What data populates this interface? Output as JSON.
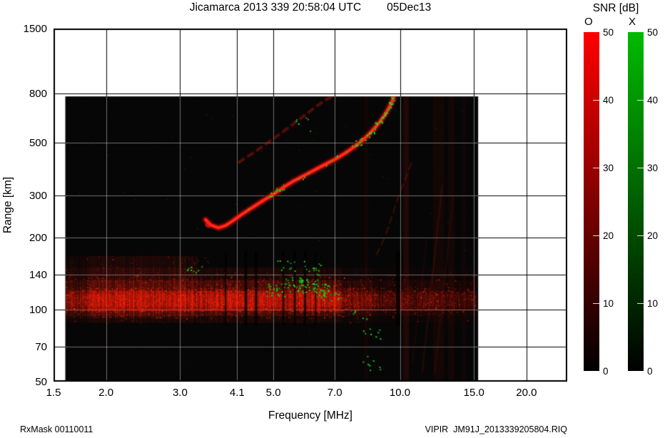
{
  "header": {
    "title": "Jicamarca 2013 339 20:58:04 UTC",
    "date": "05Dec13"
  },
  "footer": {
    "left": "RxMask 00110011",
    "right": "VIPIR  JM91J_2013339205804.RIQ"
  },
  "colorbar": {
    "label": "SNR [dB]",
    "o_label": "O",
    "x_label": "X",
    "min_db": 0,
    "max_db": 50,
    "ticks": [
      "50",
      "40",
      "30",
      "20",
      "10",
      "0"
    ],
    "o_top_color": "#ff0000",
    "x_top_color": "#00bb00",
    "bottom_color": "#000000"
  },
  "chart_data": {
    "type": "heatmap",
    "title": "Jicamarca 2013 339 20:58:04 UTC",
    "date": "05Dec13",
    "xlabel": "Frequency [MHz]",
    "ylabel": "Range [km]",
    "x_scale": "log",
    "y_scale": "log",
    "x_range": [
      1.5,
      25.0
    ],
    "y_range": [
      50,
      1500
    ],
    "x_ticks": [
      1.5,
      2.0,
      3.0,
      4.1,
      5.0,
      7.0,
      10.0,
      15.0,
      20.0
    ],
    "x_tick_labels": [
      "1.5",
      "2.0",
      "3.0",
      "4.1",
      "5.0",
      "7.0",
      "10.0",
      "15.0",
      "20.0"
    ],
    "y_ticks": [
      1500,
      800,
      500,
      300,
      200,
      140,
      100,
      70,
      50
    ],
    "y_tick_labels": [
      "1500",
      "800",
      "500",
      "300",
      "200",
      "140",
      "100",
      "70",
      "50"
    ],
    "snr_db_range": [
      0,
      50
    ],
    "data_region": {
      "f_min": 1.6,
      "f_max": 15.35,
      "r_min": 50,
      "r_max": 780
    },
    "o_trace": [
      [
        3.45,
        238
      ],
      [
        3.55,
        226
      ],
      [
        3.7,
        220
      ],
      [
        3.85,
        225
      ],
      [
        4.0,
        235
      ],
      [
        4.2,
        250
      ],
      [
        4.45,
        267
      ],
      [
        4.7,
        284
      ],
      [
        5.0,
        304
      ],
      [
        5.3,
        326
      ],
      [
        5.6,
        346
      ],
      [
        5.9,
        363
      ],
      [
        6.2,
        380
      ],
      [
        6.6,
        403
      ],
      [
        7.0,
        425
      ],
      [
        7.4,
        451
      ],
      [
        7.8,
        481
      ],
      [
        8.1,
        507
      ],
      [
        8.4,
        537
      ],
      [
        8.7,
        574
      ],
      [
        9.0,
        617
      ],
      [
        9.25,
        662
      ],
      [
        9.45,
        707
      ],
      [
        9.6,
        750
      ],
      [
        9.68,
        780
      ]
    ],
    "second_hop_trace": [
      [
        4.15,
        415
      ],
      [
        4.5,
        455
      ],
      [
        4.85,
        500
      ],
      [
        5.2,
        545
      ],
      [
        5.55,
        595
      ],
      [
        5.9,
        645
      ],
      [
        6.3,
        705
      ],
      [
        6.7,
        760
      ],
      [
        6.95,
        780
      ]
    ],
    "oblique_trace": [
      [
        8.8,
        170
      ],
      [
        9.2,
        200
      ],
      [
        9.6,
        250
      ],
      [
        10.0,
        310
      ],
      [
        10.35,
        360
      ],
      [
        10.65,
        410
      ]
    ],
    "e_region_band": {
      "f_min": 1.6,
      "f_max": 15.2,
      "r_bottom": 90,
      "r_peak_low": 100,
      "r_peak_high": 120,
      "r_top": 150,
      "bright_f_max": 7.3
    },
    "x_mode_segments": [
      {
        "f_min": 4.78,
        "f_max": 5.3,
        "density": 0.55
      },
      {
        "f_min": 5.3,
        "f_max": 7.85,
        "density": 0.1
      },
      {
        "f_min": 7.85,
        "f_max": 9.67,
        "density": 0.8
      }
    ],
    "es_green_clusters": [
      [
        5.05,
        122,
        22
      ],
      [
        5.6,
        128,
        26
      ],
      [
        6.05,
        126,
        30
      ],
      [
        6.45,
        121,
        26
      ],
      [
        6.85,
        117,
        18
      ],
      [
        6.2,
        150,
        14
      ],
      [
        5.35,
        153,
        10
      ],
      [
        3.25,
        147,
        9
      ],
      [
        5.9,
        600,
        6
      ],
      [
        8.55,
        60,
        8
      ],
      [
        8.55,
        80,
        8
      ],
      [
        7.95,
        95,
        5
      ]
    ],
    "rfi_red_streaks": [
      [
        10.35,
        0.1,
        8
      ],
      [
        12.35,
        0.055,
        16
      ],
      [
        13.25,
        0.05,
        10
      ],
      [
        8.32,
        0.05,
        5
      ],
      [
        14.2,
        0.04,
        6
      ]
    ],
    "rfi_dark_gaps": [
      [
        3.85,
        2
      ],
      [
        4.3,
        4
      ],
      [
        4.55,
        3
      ],
      [
        5.28,
        3
      ],
      [
        5.62,
        3
      ],
      [
        5.95,
        3
      ],
      [
        6.3,
        2
      ],
      [
        9.9,
        6
      ]
    ],
    "diagonal_streaks": [
      [
        11.3,
        55,
        12.6,
        330,
        0.1
      ],
      [
        12.1,
        55,
        13.4,
        300,
        0.08
      ],
      [
        10.7,
        60,
        11.6,
        200,
        0.06
      ]
    ],
    "colors": {
      "o_mode": "#ff1e0f",
      "x_mode": "#17c417",
      "background": "#060606"
    }
  }
}
